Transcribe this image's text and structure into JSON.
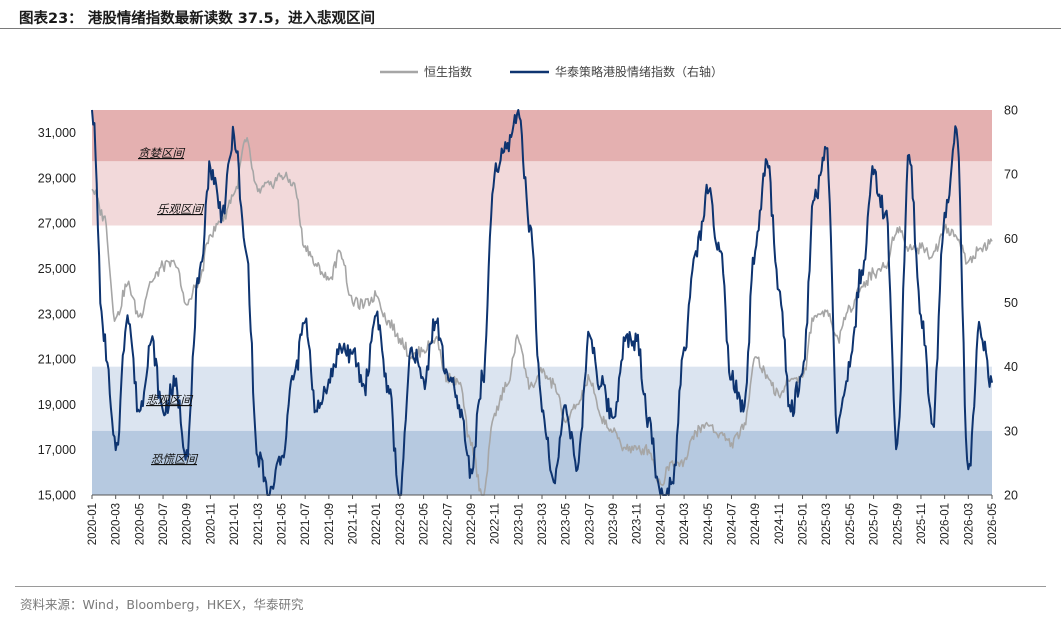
{
  "header": {
    "title": "图表23：  港股情绪指数最新读数 37.5，进入悲观区间"
  },
  "footer": {
    "source": "资料来源：Wind，Bloomberg，HKEX，华泰研究"
  },
  "colors": {
    "hsi": "#a6a6a6",
    "sentiment": "#0e3470",
    "greed_band": "#e4b0b0",
    "optimism_band": "#f2d9da",
    "pessimism_band": "#dbe4f0",
    "panic_band": "#b6c9e0"
  },
  "chart_data": {
    "type": "line",
    "title": "",
    "xlabel": "",
    "ylabel": "",
    "ylabel_right": "",
    "grid": false,
    "legend_position": "top-center",
    "ylim_left": [
      15000,
      32000
    ],
    "ylim_right": [
      20,
      80
    ],
    "yticks_left": [
      "15,000",
      "17,000",
      "19,000",
      "21,000",
      "23,000",
      "25,000",
      "27,000",
      "29,000",
      "31,000"
    ],
    "yticks_right": [
      "20",
      "30",
      "40",
      "50",
      "60",
      "70",
      "80"
    ],
    "x_labels": [
      "2020-01",
      "2020-03",
      "2020-05",
      "2020-07",
      "2020-09",
      "2020-11",
      "2021-01",
      "2021-03",
      "2021-05",
      "2021-07",
      "2021-09",
      "2021-11",
      "2022-01",
      "2022-03",
      "2022-05",
      "2022-07",
      "2022-09",
      "2022-11",
      "2023-01",
      "2023-03",
      "2023-05",
      "2023-07",
      "2023-09",
      "2023-11",
      "2024-01",
      "2024-03",
      "2024-05",
      "2024-07",
      "2024-09",
      "2024-11",
      "2025-01",
      "2025-03",
      "2025-05",
      "2025-07",
      "2025-09",
      "2025-11",
      "2026-01",
      "2026-03",
      "2026-05"
    ],
    "zones": [
      {
        "name": "贪婪区间",
        "from": 72,
        "to": 80
      },
      {
        "name": "乐观区间",
        "from": 62,
        "to": 72
      },
      {
        "name": "悲观区间",
        "from": 30,
        "to": 40
      },
      {
        "name": "恐慌区间",
        "from": 20,
        "to": 30
      }
    ],
    "series": [
      {
        "name": "恒生指数",
        "axis": "left",
        "points": [
          [
            "2020-01",
            28500
          ],
          [
            "2020-02",
            27300
          ],
          [
            "2020-03",
            22800
          ],
          [
            "2020-04",
            24300
          ],
          [
            "2020-05",
            22900
          ],
          [
            "2020-06",
            24400
          ],
          [
            "2020-07",
            25100
          ],
          [
            "2020-08",
            25200
          ],
          [
            "2020-09",
            23400
          ],
          [
            "2020-10",
            24400
          ],
          [
            "2020-11",
            26500
          ],
          [
            "2020-12",
            27200
          ],
          [
            "2021-01",
            28300
          ],
          [
            "2021-02",
            30600
          ],
          [
            "2021-03",
            28400
          ],
          [
            "2021-04",
            28700
          ],
          [
            "2021-05",
            29100
          ],
          [
            "2021-06",
            28800
          ],
          [
            "2021-07",
            26000
          ],
          [
            "2021-08",
            25100
          ],
          [
            "2021-09",
            24500
          ],
          [
            "2021-10",
            25700
          ],
          [
            "2021-11",
            23500
          ],
          [
            "2021-12",
            23400
          ],
          [
            "2022-01",
            23800
          ],
          [
            "2022-02",
            22700
          ],
          [
            "2022-03",
            21900
          ],
          [
            "2022-04",
            21100
          ],
          [
            "2022-05",
            21400
          ],
          [
            "2022-06",
            21900
          ],
          [
            "2022-07",
            20200
          ],
          [
            "2022-08",
            19900
          ],
          [
            "2022-09",
            17200
          ],
          [
            "2022-10",
            14900
          ],
          [
            "2022-11",
            18600
          ],
          [
            "2022-12",
            19800
          ],
          [
            "2023-01",
            21900
          ],
          [
            "2023-02",
            19800
          ],
          [
            "2023-03",
            20400
          ],
          [
            "2023-04",
            19900
          ],
          [
            "2023-05",
            18200
          ],
          [
            "2023-06",
            19000
          ],
          [
            "2023-07",
            20100
          ],
          [
            "2023-08",
            18400
          ],
          [
            "2023-09",
            17800
          ],
          [
            "2023-10",
            17100
          ],
          [
            "2023-11",
            17000
          ],
          [
            "2023-12",
            17000
          ],
          [
            "2024-01",
            15500
          ],
          [
            "2024-02",
            16500
          ],
          [
            "2024-03",
            16500
          ],
          [
            "2024-04",
            17800
          ],
          [
            "2024-05",
            18100
          ],
          [
            "2024-06",
            17700
          ],
          [
            "2024-07",
            17300
          ],
          [
            "2024-08",
            17900
          ],
          [
            "2024-09",
            21100
          ],
          [
            "2024-10",
            20300
          ],
          [
            "2024-11",
            19400
          ],
          [
            "2024-12",
            20100
          ],
          [
            "2025-01",
            20200
          ],
          [
            "2025-02",
            22900
          ],
          [
            "2025-03",
            23100
          ],
          [
            "2025-04",
            21900
          ],
          [
            "2025-05",
            23300
          ],
          [
            "2025-06",
            24200
          ],
          [
            "2025-07",
            24800
          ],
          [
            "2025-08",
            25100
          ],
          [
            "2025-09",
            26800
          ],
          [
            "2025-10",
            25900
          ],
          [
            "2025-11",
            25900
          ],
          [
            "2025-12",
            25600
          ],
          [
            "2026-01",
            26800
          ],
          [
            "2026-02",
            26400
          ],
          [
            "2026-03",
            25300
          ],
          [
            "2026-04",
            25900
          ],
          [
            "2026-05",
            26200
          ]
        ]
      },
      {
        "name": "华泰策略港股情绪指数（右轴）",
        "axis": "right",
        "points": [
          [
            "2020-01",
            80
          ],
          [
            "2020-02",
            44
          ],
          [
            "2020-03",
            27
          ],
          [
            "2020-04",
            48
          ],
          [
            "2020-05",
            33
          ],
          [
            "2020-06",
            44
          ],
          [
            "2020-07",
            33
          ],
          [
            "2020-08",
            37
          ],
          [
            "2020-09",
            27
          ],
          [
            "2020-10",
            53
          ],
          [
            "2020-11",
            71
          ],
          [
            "2020-12",
            64
          ],
          [
            "2021-01",
            76
          ],
          [
            "2021-02",
            58
          ],
          [
            "2021-03",
            26
          ],
          [
            "2021-04",
            20
          ],
          [
            "2021-05",
            26
          ],
          [
            "2021-06",
            38
          ],
          [
            "2021-07",
            47
          ],
          [
            "2021-08",
            33
          ],
          [
            "2021-09",
            38
          ],
          [
            "2021-10",
            43
          ],
          [
            "2021-11",
            42
          ],
          [
            "2021-12",
            37
          ],
          [
            "2022-01",
            48
          ],
          [
            "2022-02",
            37
          ],
          [
            "2022-03",
            20
          ],
          [
            "2022-04",
            43
          ],
          [
            "2022-05",
            38
          ],
          [
            "2022-06",
            47
          ],
          [
            "2022-07",
            39
          ],
          [
            "2022-08",
            34
          ],
          [
            "2022-09",
            24
          ],
          [
            "2022-10",
            38
          ],
          [
            "2022-11",
            70
          ],
          [
            "2022-12",
            74
          ],
          [
            "2023-01",
            80
          ],
          [
            "2023-02",
            62
          ],
          [
            "2023-03",
            33
          ],
          [
            "2023-04",
            22
          ],
          [
            "2023-05",
            34
          ],
          [
            "2023-06",
            24
          ],
          [
            "2023-07",
            45
          ],
          [
            "2023-08",
            37
          ],
          [
            "2023-09",
            32
          ],
          [
            "2023-10",
            44
          ],
          [
            "2023-11",
            44
          ],
          [
            "2023-12",
            32
          ],
          [
            "2024-01",
            20
          ],
          [
            "2024-02",
            22
          ],
          [
            "2024-03",
            43
          ],
          [
            "2024-04",
            58
          ],
          [
            "2024-05",
            67
          ],
          [
            "2024-06",
            58
          ],
          [
            "2024-07",
            38
          ],
          [
            "2024-08",
            33
          ],
          [
            "2024-09",
            58
          ],
          [
            "2024-10",
            72
          ],
          [
            "2024-11",
            52
          ],
          [
            "2024-12",
            33
          ],
          [
            "2025-01",
            39
          ],
          [
            "2025-02",
            66
          ],
          [
            "2025-03",
            74
          ],
          [
            "2025-04",
            30
          ],
          [
            "2025-05",
            40
          ],
          [
            "2025-06",
            55
          ],
          [
            "2025-07",
            70
          ],
          [
            "2025-08",
            64
          ],
          [
            "2025-09",
            28
          ],
          [
            "2025-10",
            73
          ],
          [
            "2025-11",
            48
          ],
          [
            "2025-12",
            31
          ],
          [
            "2026-01",
            64
          ],
          [
            "2026-02",
            77
          ],
          [
            "2026-03",
            24
          ],
          [
            "2026-04",
            46
          ],
          [
            "2026-05",
            37.5
          ]
        ]
      }
    ]
  }
}
